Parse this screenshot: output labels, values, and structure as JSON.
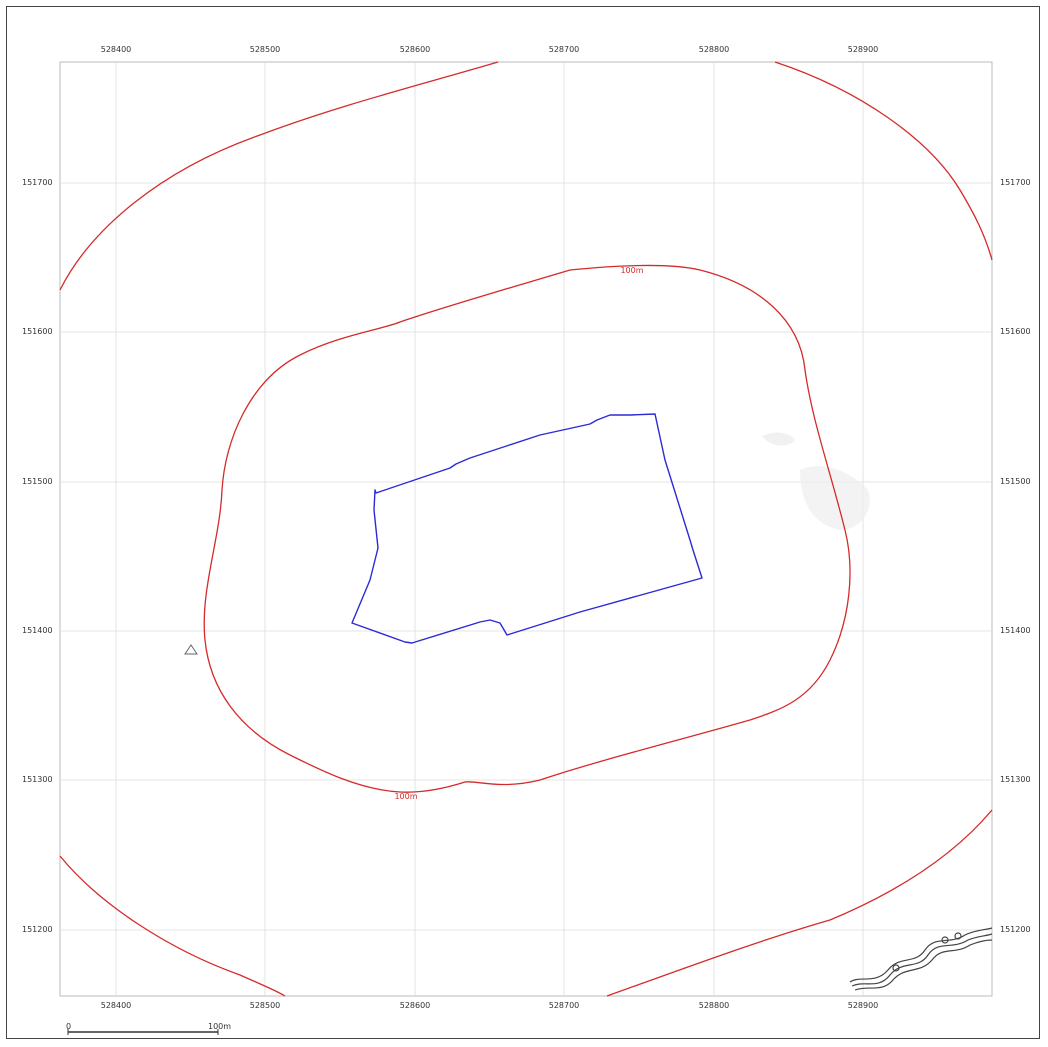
{
  "map": {
    "easting_ticks": [
      "528400",
      "528500",
      "528600",
      "528700",
      "528800",
      "528900"
    ],
    "northing_ticks": [
      "151700",
      "151600",
      "151500",
      "151400",
      "151300",
      "151200"
    ],
    "buffer_labels": [
      "100m",
      "100m"
    ],
    "colors": {
      "buffer": "#d62a2a",
      "site": "#2b2bd6",
      "grid": "#dcdcdc",
      "frame": "#444444"
    }
  },
  "scale_bar": {
    "start_label": "0",
    "end_label": "100m"
  }
}
